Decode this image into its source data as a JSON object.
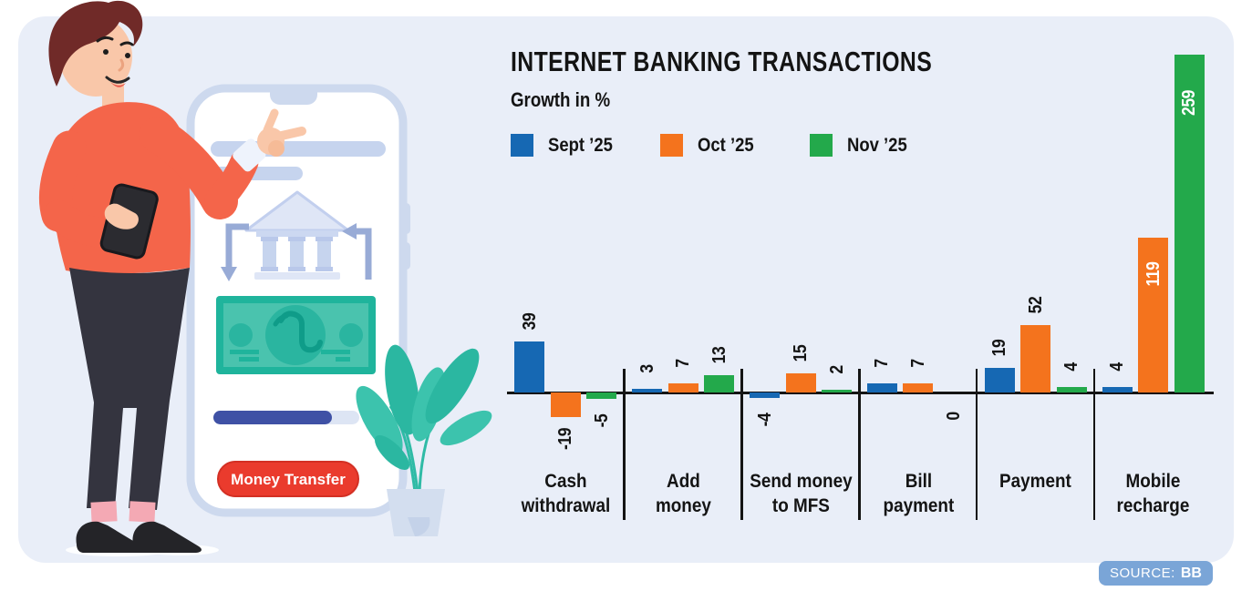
{
  "page": {
    "background": "#ffffff",
    "card_background": "#e9eef8"
  },
  "chart_data": {
    "type": "bar",
    "title": "INTERNET BANKING TRANSACTIONS",
    "subtitle": "Growth in %",
    "unit": "%",
    "grid": false,
    "legend_position": "top",
    "axis_line_color": "#141414",
    "baseline": 0,
    "ylim": [
      -19,
      259
    ],
    "categories": [
      "Cash withdrawal",
      "Add money",
      "Send money to MFS",
      "Bill payment",
      "Payment",
      "Mobile recharge"
    ],
    "category_label_lines": [
      [
        "Cash",
        "withdrawal"
      ],
      [
        "Add",
        "money"
      ],
      [
        "Send money",
        "to MFS"
      ],
      [
        "Bill",
        "payment"
      ],
      [
        "Payment"
      ],
      [
        "Mobile",
        "recharge"
      ]
    ],
    "series": [
      {
        "name": "Sept ’25",
        "key": "sept-25",
        "color": "#1668b3",
        "values": [
          39,
          3,
          -4,
          7,
          19,
          4
        ]
      },
      {
        "name": "Oct ’25",
        "key": "oct-25",
        "color": "#f4731d",
        "values": [
          -19,
          7,
          15,
          7,
          52,
          119
        ]
      },
      {
        "name": "Nov ’25",
        "key": "nov-25",
        "color": "#23a94b",
        "values": [
          -5,
          13,
          2,
          0,
          4,
          259
        ]
      }
    ]
  },
  "illustration": {
    "button_label": "Money Transfer"
  },
  "source": {
    "label": "SOURCE:",
    "value": "BB",
    "background": "#7aa5d7"
  }
}
